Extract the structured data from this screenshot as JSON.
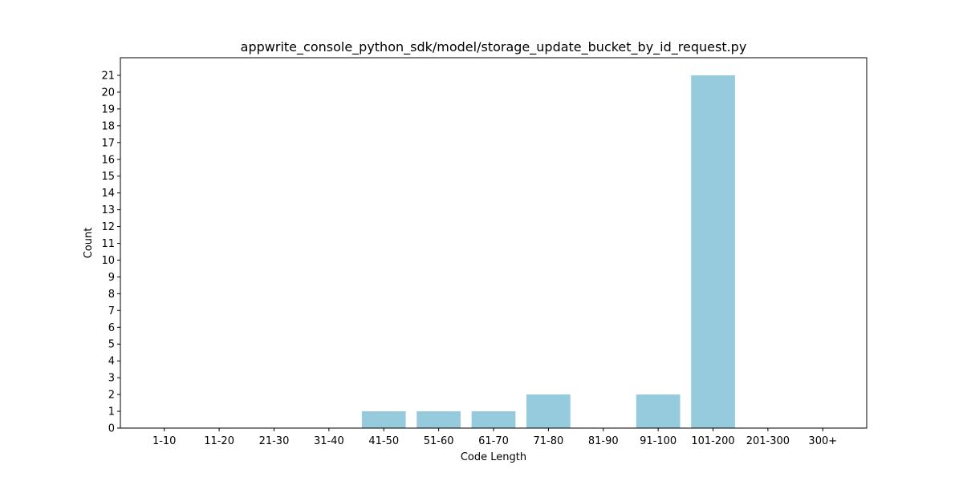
{
  "chart_data": {
    "type": "bar",
    "title": "appwrite_console_python_sdk/model/storage_update_bucket_by_id_request.py",
    "xlabel": "Code Length",
    "ylabel": "Count",
    "categories": [
      "1-10",
      "11-20",
      "21-30",
      "31-40",
      "41-50",
      "51-60",
      "61-70",
      "71-80",
      "81-90",
      "91-100",
      "101-200",
      "201-300",
      "300+"
    ],
    "values": [
      0,
      0,
      0,
      0,
      1,
      1,
      1,
      2,
      0,
      2,
      21,
      0,
      0
    ],
    "yticks": [
      0,
      1,
      2,
      3,
      4,
      5,
      6,
      7,
      8,
      9,
      10,
      11,
      12,
      13,
      14,
      15,
      16,
      17,
      18,
      19,
      20,
      21
    ],
    "ylim": [
      0,
      22.05
    ],
    "bar_color": "#96cadd",
    "grid": false,
    "legend": "none"
  }
}
